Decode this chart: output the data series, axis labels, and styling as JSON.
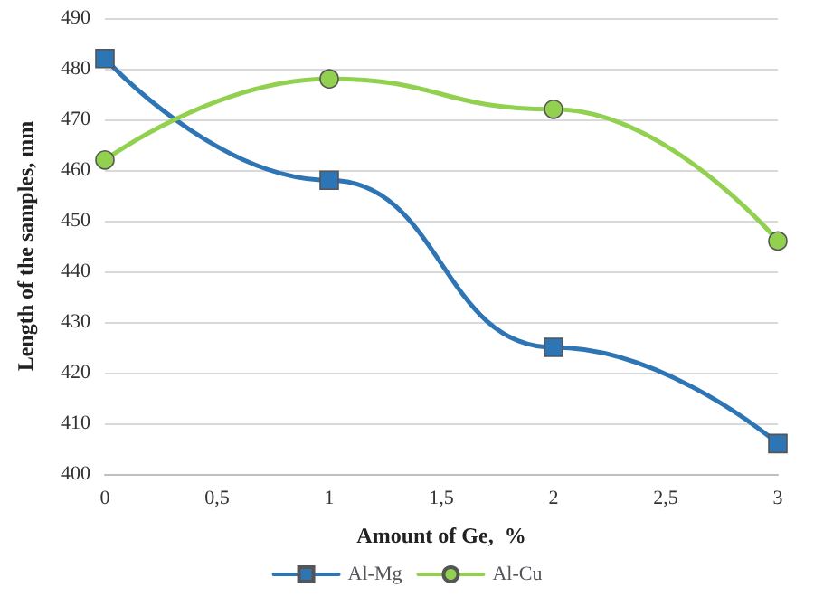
{
  "chart_data": {
    "type": "line",
    "xlabel": "Amount of Ge,  %",
    "ylabel": "Length of the samples, mm",
    "x": [
      0,
      1,
      2,
      3
    ],
    "series": [
      {
        "name": "Al-Mg",
        "color": "#2e75b6",
        "marker": "square",
        "values": [
          482,
          458,
          425,
          406
        ]
      },
      {
        "name": "Al-Cu",
        "color": "#92d050",
        "marker": "circle",
        "values": [
          462,
          478,
          472,
          446
        ]
      }
    ],
    "xlim": [
      0,
      3
    ],
    "xticks": [
      0,
      {
        "value": 0.5,
        "label": "0,5"
      },
      1,
      {
        "value": 1.5,
        "label": "1,5"
      },
      2,
      {
        "value": 2.5,
        "label": "2,5"
      },
      3
    ],
    "ylim": [
      400,
      490
    ],
    "yticks": [
      400,
      410,
      420,
      430,
      440,
      450,
      460,
      470,
      480,
      490
    ],
    "grid": "y",
    "legend": "bottom",
    "line_style": "solid"
  }
}
